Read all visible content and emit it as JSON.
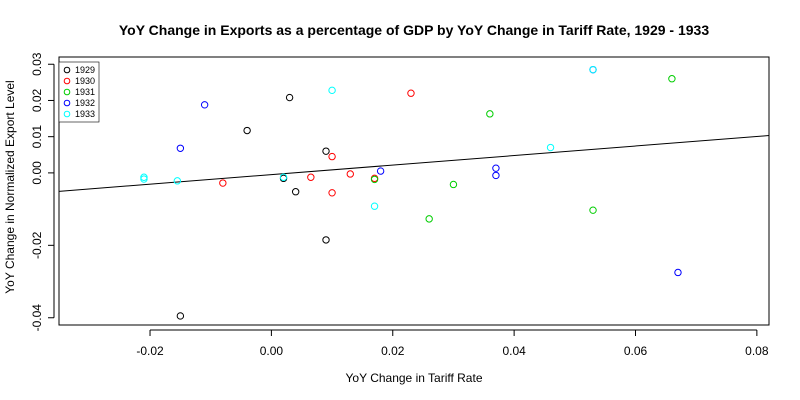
{
  "chart_data": {
    "type": "scatter",
    "title": "YoY Change in Exports as a percentage of GDP by YoY Change in Tariff Rate,  1929 - 1933",
    "xlabel": "YoY Change in Tariff Rate",
    "ylabel": "YoY Change in Normalized Export Level",
    "xlim": [
      -0.035,
      0.082
    ],
    "ylim": [
      -0.042,
      0.032
    ],
    "x_ticks": [
      -0.02,
      0.0,
      0.02,
      0.04,
      0.06,
      0.08
    ],
    "x_tick_labels": [
      "-0.02",
      "0.00",
      "0.02",
      "0.04",
      "0.06",
      "0.08"
    ],
    "y_ticks": [
      -0.04,
      -0.02,
      0.0,
      0.01,
      0.02,
      0.03
    ],
    "y_tick_labels": [
      "-0.04",
      "-0.02",
      "0.00",
      "0.01",
      "0.02",
      "0.03"
    ],
    "legend_position": "top-left",
    "series": [
      {
        "name": "1929",
        "color": "#000000",
        "points": [
          [
            -0.015,
            -0.0395
          ],
          [
            -0.004,
            0.0117
          ],
          [
            0.002,
            -0.0015
          ],
          [
            0.003,
            0.0208
          ],
          [
            0.004,
            -0.0052
          ],
          [
            0.009,
            0.006
          ],
          [
            0.009,
            -0.0185
          ]
        ]
      },
      {
        "name": "1930",
        "color": "#ff0000",
        "points": [
          [
            -0.008,
            -0.0028
          ],
          [
            0.0065,
            -0.0012
          ],
          [
            0.01,
            0.0045
          ],
          [
            0.01,
            -0.0055
          ],
          [
            0.013,
            -0.0003
          ],
          [
            0.017,
            -0.0015
          ],
          [
            0.023,
            0.022
          ]
        ]
      },
      {
        "name": "1931",
        "color": "#00cd00",
        "points": [
          [
            0.017,
            -0.0018
          ],
          [
            0.026,
            -0.0127
          ],
          [
            0.03,
            -0.0032
          ],
          [
            0.036,
            0.0163
          ],
          [
            0.053,
            -0.0103
          ],
          [
            0.066,
            0.026
          ]
        ]
      },
      {
        "name": "1932",
        "color": "#0000ff",
        "points": [
          [
            -0.015,
            0.0068
          ],
          [
            -0.011,
            0.0188
          ],
          [
            0.018,
            0.0005
          ],
          [
            0.037,
            0.0013
          ],
          [
            0.037,
            -0.0007
          ],
          [
            0.053,
            0.0285
          ],
          [
            0.067,
            -0.0275
          ]
        ]
      },
      {
        "name": "1933",
        "color": "#00ffff",
        "points": [
          [
            -0.021,
            -0.0012
          ],
          [
            -0.021,
            -0.0017
          ],
          [
            -0.0155,
            -0.0022
          ],
          [
            0.002,
            -0.0012
          ],
          [
            0.01,
            0.0228
          ],
          [
            0.017,
            -0.0092
          ],
          [
            0.046,
            0.007
          ],
          [
            0.053,
            0.0285
          ]
        ]
      }
    ],
    "regression_line": {
      "intercept": -0.00048,
      "slope": 0.1317,
      "color": "#000000"
    }
  }
}
